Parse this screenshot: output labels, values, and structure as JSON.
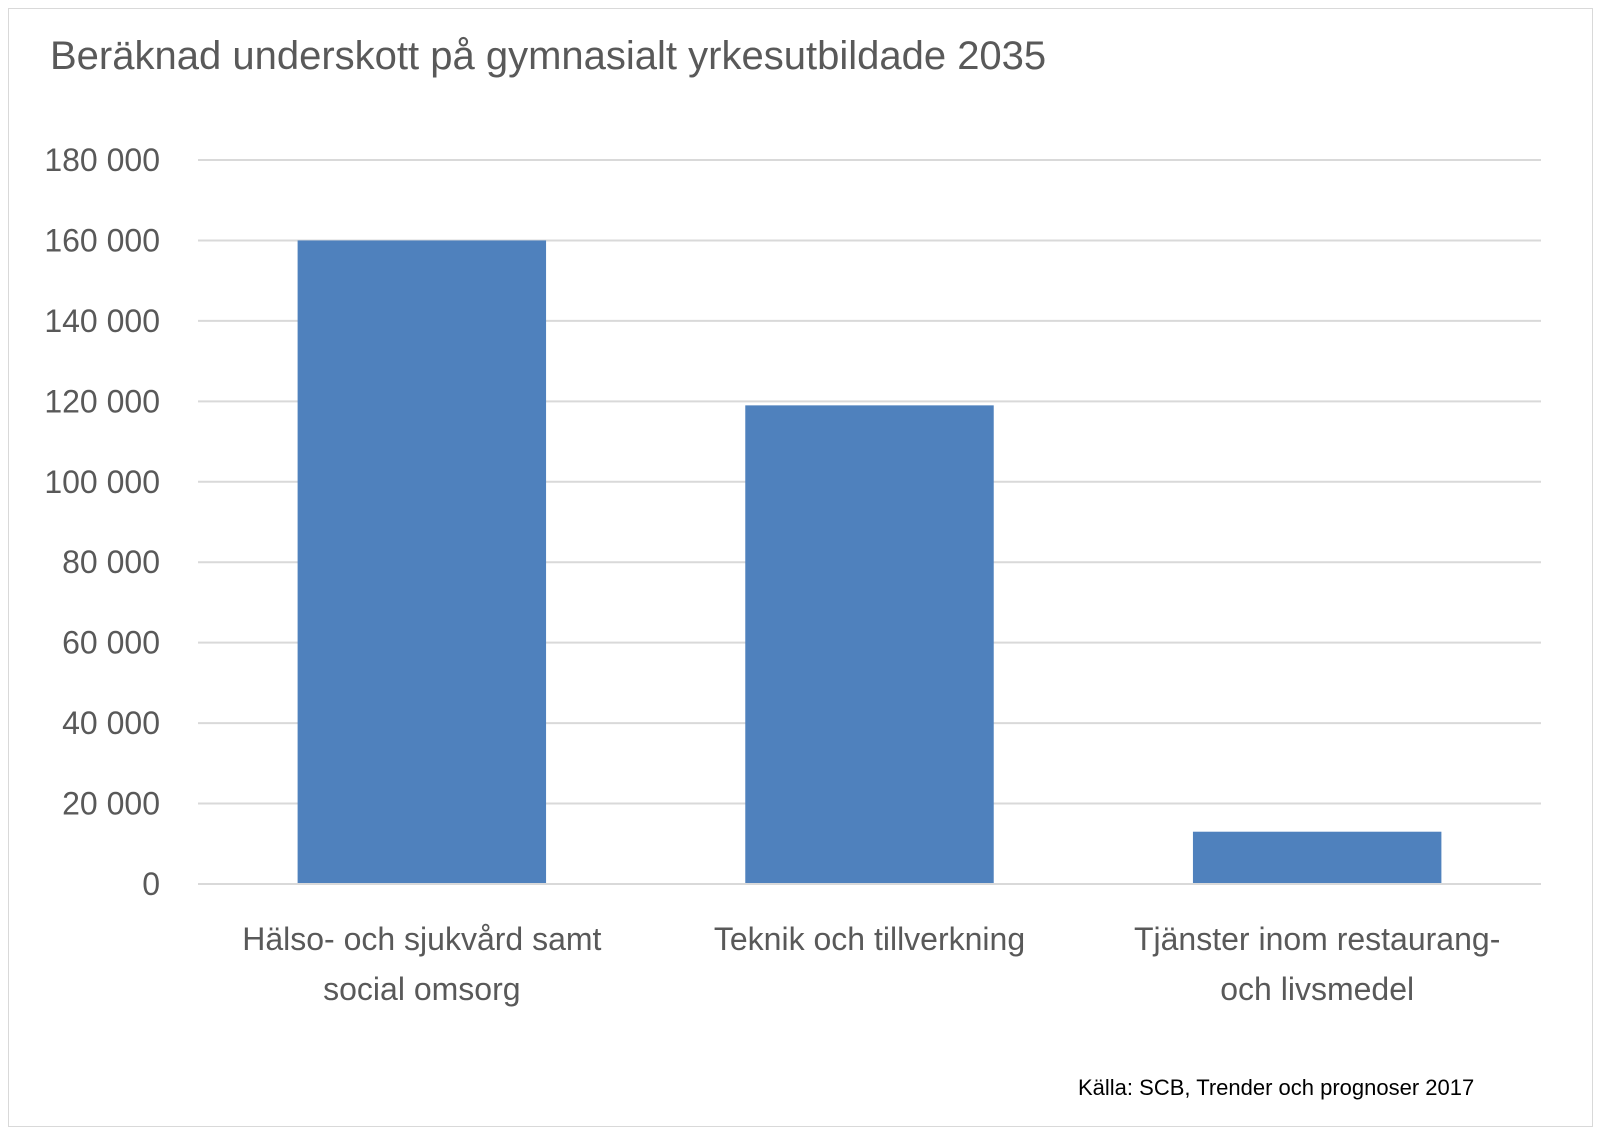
{
  "chart_data": {
    "type": "bar",
    "title": "Beräknad underskott på gymnasialt yrkesutbildade 2035",
    "categories": [
      [
        "Hälso- och sjukvård samt",
        "social omsorg"
      ],
      [
        "Teknik och tillverkning"
      ],
      [
        "Tjänster inom restaurang-",
        "och livsmedel"
      ]
    ],
    "values": [
      160000,
      119000,
      13000
    ],
    "ylim": [
      0,
      180000
    ],
    "yticks": [
      0,
      20000,
      40000,
      60000,
      80000,
      100000,
      120000,
      140000,
      160000,
      180000
    ],
    "ytick_labels": [
      "0",
      "20 000",
      "40 000",
      "60 000",
      "80 000",
      "100 000",
      "120 000",
      "140 000",
      "160 000",
      "180 000"
    ],
    "grid": true,
    "legend": "none",
    "colors": {
      "bar": "#4f81bd",
      "grid": "#d9d9d9",
      "text": "#595959"
    },
    "source": "Källa: SCB, Trender och prognoser 2017"
  }
}
